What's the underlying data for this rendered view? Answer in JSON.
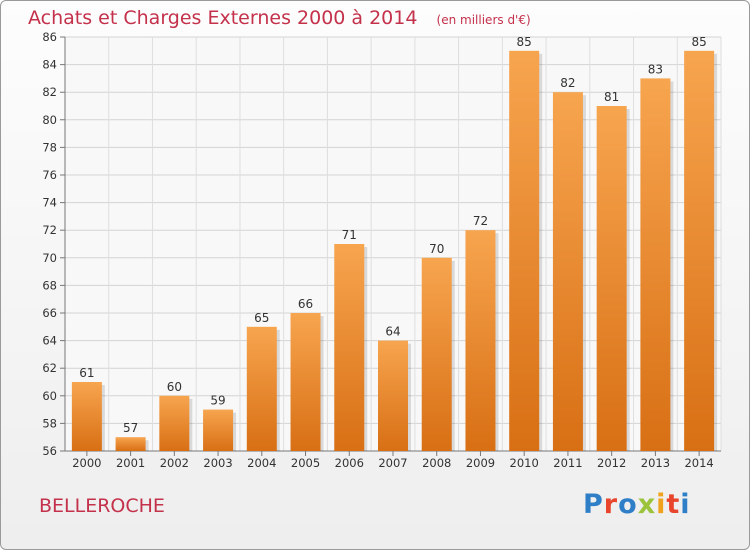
{
  "header": {
    "title": "Achats et Charges Externes 2000 à 2014",
    "unit": "(en milliers d'€)"
  },
  "footer": {
    "commune": "BELLEROCHE",
    "logo_text": "Proxiti",
    "logo_colors": [
      "#2f7fc8",
      "#e8452c",
      "#2f7fc8",
      "#9bc43b",
      "#f0a21c",
      "#e8452c",
      "#2f7fc8"
    ]
  },
  "chart_data": {
    "type": "bar",
    "title": "Achats et Charges Externes 2000 à 2014",
    "unit": "(en milliers d'€)",
    "categories": [
      "2000",
      "2001",
      "2002",
      "2003",
      "2004",
      "2005",
      "2006",
      "2007",
      "2008",
      "2009",
      "2010",
      "2011",
      "2012",
      "2013",
      "2014"
    ],
    "values": [
      61,
      57,
      60,
      59,
      65,
      66,
      71,
      64,
      70,
      72,
      85,
      82,
      81,
      83,
      85
    ],
    "ylim": [
      56,
      86
    ],
    "yticks": [
      56,
      58,
      60,
      62,
      64,
      66,
      68,
      70,
      72,
      74,
      76,
      78,
      80,
      82,
      84,
      86
    ],
    "grid": true,
    "bar_color_top": "#f7a54f",
    "bar_color_bottom": "#d86f14"
  }
}
